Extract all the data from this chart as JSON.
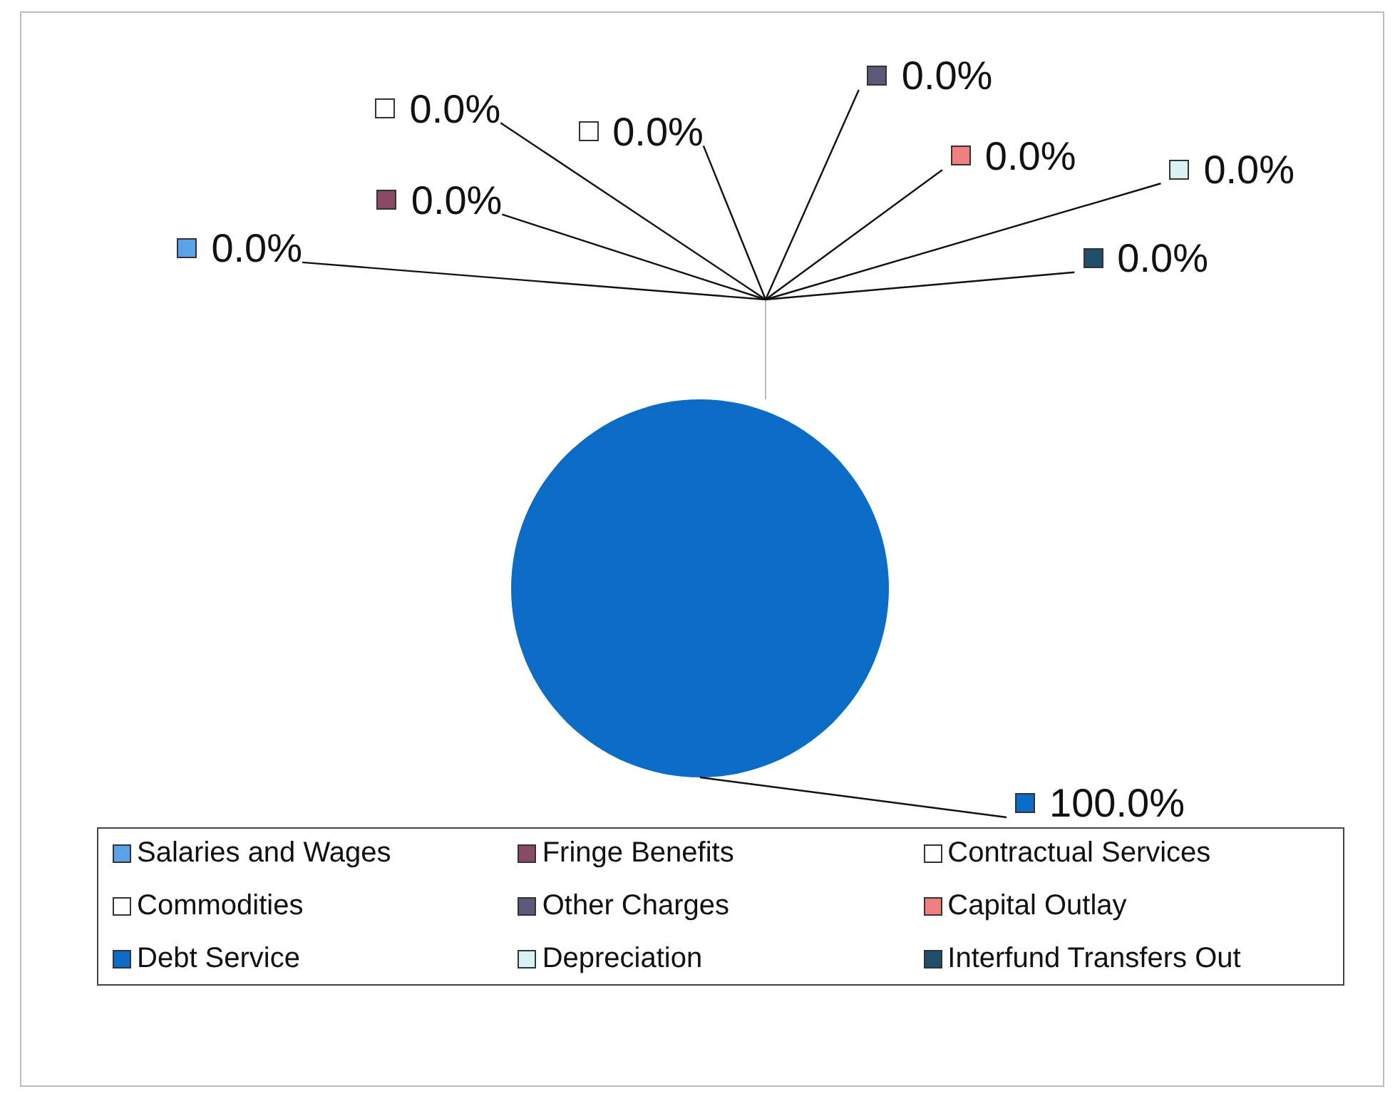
{
  "chart_data": {
    "type": "pie",
    "categories": [
      "Salaries and Wages",
      "Fringe Benefits",
      "Contractual Services",
      "Commodities",
      "Other Charges",
      "Capital Outlay",
      "Debt Service",
      "Depreciation",
      "Interfund Transfers Out"
    ],
    "values": [
      0,
      0,
      0,
      0,
      0,
      0,
      100,
      0,
      0
    ],
    "colors": [
      "#5ba3e8",
      "#8b4a63",
      "#ffffff",
      "#ffffff",
      "#5a5a78",
      "#f08080",
      "#0a6cc4",
      "#d8f2f4",
      "#1f4e6b"
    ],
    "value_labels": [
      "0.0%",
      "0.0%",
      "0.0%",
      "0.0%",
      "0.0%",
      "0.0%",
      "100.0%",
      "0.0%",
      "0.0%"
    ],
    "legend": "bottom"
  }
}
